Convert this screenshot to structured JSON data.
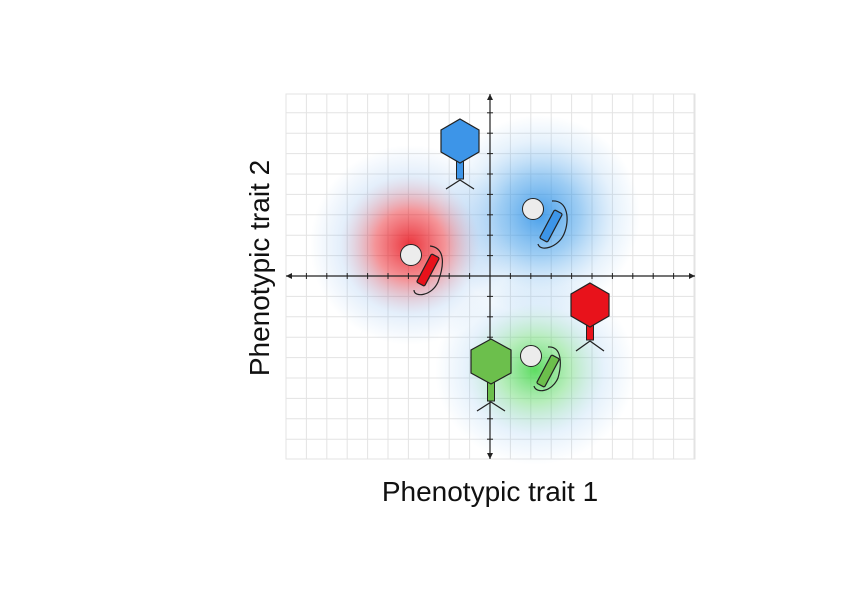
{
  "axes": {
    "x_label": "Phenotypic trait 1",
    "y_label": "Phenotypic trait 2",
    "grid": true
  },
  "colors": {
    "red": "#e8121b",
    "blue": "#3d95e8",
    "green": "#6cbf4c",
    "cell_body": "#ececec"
  },
  "elements": [
    {
      "type": "glow",
      "name": "red-niche-glow",
      "color": "red"
    },
    {
      "type": "glow",
      "name": "blue-niche-glow",
      "color": "blue"
    },
    {
      "type": "glow",
      "name": "green-niche-glow",
      "color": "green"
    },
    {
      "type": "bacterium",
      "name": "red-bacterium-icon",
      "color": "red"
    },
    {
      "type": "bacterium",
      "name": "blue-bacterium-icon",
      "color": "blue"
    },
    {
      "type": "bacterium",
      "name": "green-bacterium-icon",
      "color": "green"
    },
    {
      "type": "phage",
      "name": "blue-phage-icon",
      "color": "blue"
    },
    {
      "type": "phage",
      "name": "red-phage-icon",
      "color": "red"
    },
    {
      "type": "phage",
      "name": "green-phage-icon",
      "color": "green"
    }
  ]
}
